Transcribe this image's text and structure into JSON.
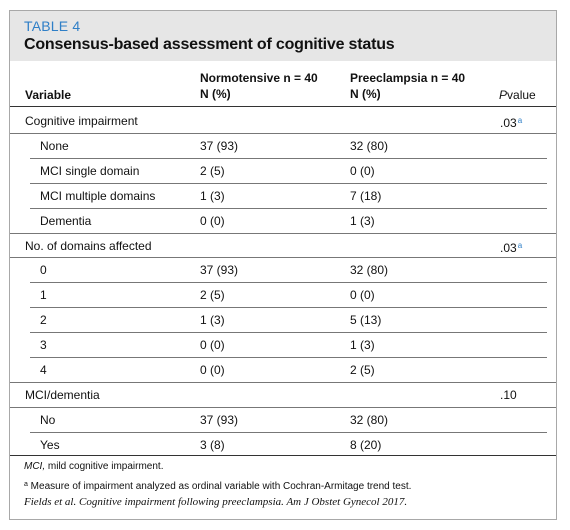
{
  "table": {
    "label": "TABLE 4",
    "title": "Consensus-based assessment of cognitive status",
    "columns": {
      "variable": "Variable",
      "normotensive_line1": "Normotensive n = 40",
      "normotensive_line2": "N (%)",
      "preeclampsia_line1": "Preeclampsia n = 40",
      "preeclampsia_line2": "N (%)",
      "pvalue_italic": "P",
      "pvalue_rest": "value"
    },
    "sections": [
      {
        "label": "Cognitive impairment",
        "p": ".03",
        "sup": "a",
        "rows": [
          {
            "label": "None",
            "normo": "37 (93)",
            "pre": "32 (80)"
          },
          {
            "label": "MCI single domain",
            "normo": "2 (5)",
            "pre": "0 (0)"
          },
          {
            "label": "MCI multiple domains",
            "normo": "1 (3)",
            "pre": "7 (18)"
          },
          {
            "label": "Dementia",
            "normo": "0 (0)",
            "pre": "1 (3)"
          }
        ]
      },
      {
        "label": "No. of domains affected",
        "p": ".03",
        "sup": "a",
        "rows": [
          {
            "label": "0",
            "normo": "37 (93)",
            "pre": "32 (80)"
          },
          {
            "label": "1",
            "normo": "2 (5)",
            "pre": "0 (0)"
          },
          {
            "label": "2",
            "normo": "1 (3)",
            "pre": "5 (13)"
          },
          {
            "label": "3",
            "normo": "0 (0)",
            "pre": "1 (3)"
          },
          {
            "label": "4",
            "normo": "0 (0)",
            "pre": "2 (5)"
          }
        ]
      },
      {
        "label": "MCI/dementia",
        "p": ".10",
        "sup": "",
        "rows": [
          {
            "label": "No",
            "normo": "37 (93)",
            "pre": "32 (80)"
          },
          {
            "label": "Yes",
            "normo": "3 (8)",
            "pre": "8 (20)"
          }
        ]
      }
    ],
    "footnotes": {
      "abbrev_term": "MCI,",
      "abbrev_def": " mild cognitive impairment.",
      "note_marker": "a",
      "note_text": " Measure of impairment analyzed as ordinal variable with Cochran-Armitage trend test.",
      "citation": "Fields et al. Cognitive impairment following preeclampsia. Am J Obstet Gynecol 2017."
    }
  },
  "colors": {
    "accent": "#2f7fc7",
    "header_bg": "#e6e6e6",
    "border": "#a8a8a8"
  }
}
